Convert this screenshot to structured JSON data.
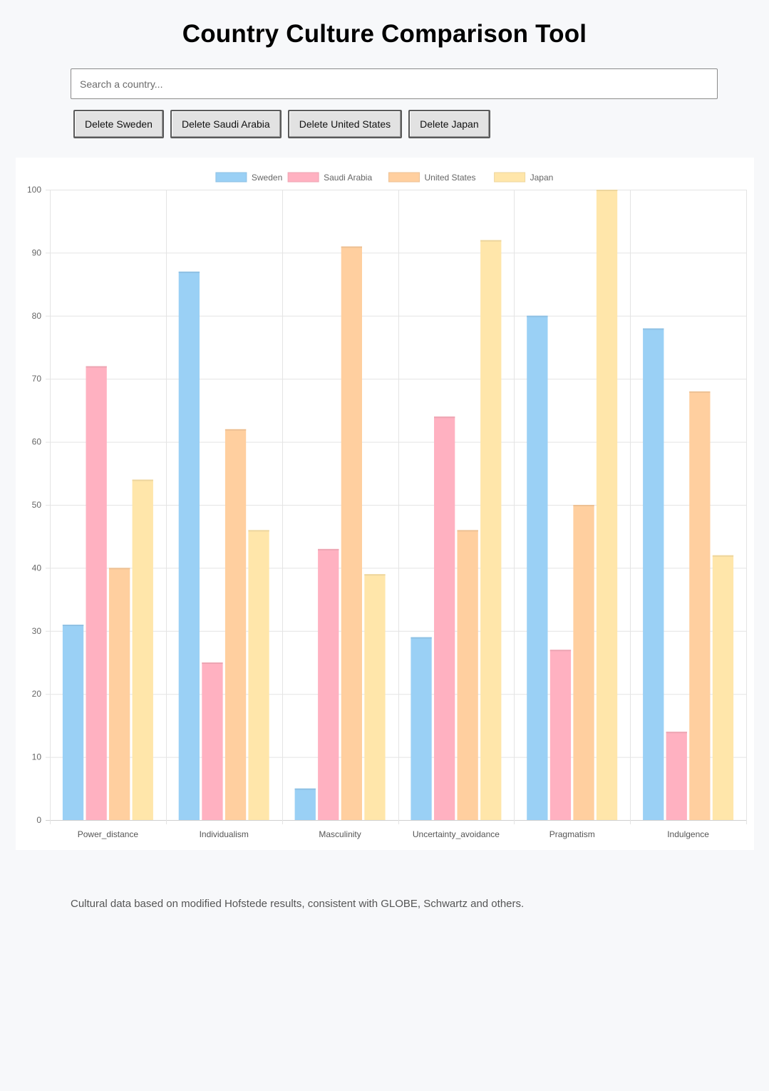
{
  "page": {
    "title": "Country Culture Comparison Tool",
    "footnote": "Cultural data based on modified Hofstede results, consistent with GLOBE, Schwartz and others."
  },
  "search": {
    "value": "",
    "placeholder": "Search a country..."
  },
  "delete_buttons": [
    {
      "label": "Delete Sweden"
    },
    {
      "label": "Delete Saudi Arabia"
    },
    {
      "label": "Delete United States"
    },
    {
      "label": "Delete Japan"
    }
  ],
  "chart_data": {
    "type": "bar",
    "title": "",
    "xlabel": "",
    "ylabel": "",
    "categories": [
      "Power_distance",
      "Individualism",
      "Masculinity",
      "Uncertainty_avoidance",
      "Pragmatism",
      "Indulgence"
    ],
    "ylim": [
      0,
      100
    ],
    "yticks": [
      0,
      10,
      20,
      30,
      40,
      50,
      60,
      70,
      80,
      90,
      100
    ],
    "grid": true,
    "legend": "top-center",
    "series": [
      {
        "name": "Sweden",
        "color": "#9ad0f5",
        "values": [
          31,
          87,
          5,
          29,
          80,
          78
        ]
      },
      {
        "name": "Saudi Arabia",
        "color": "#ffb1c1",
        "values": [
          72,
          25,
          43,
          64,
          27,
          14
        ]
      },
      {
        "name": "United States",
        "color": "#ffcf9f",
        "values": [
          40,
          62,
          91,
          46,
          50,
          68
        ]
      },
      {
        "name": "Japan",
        "color": "#ffe6aa",
        "values": [
          54,
          46,
          39,
          92,
          100,
          42
        ]
      }
    ]
  }
}
